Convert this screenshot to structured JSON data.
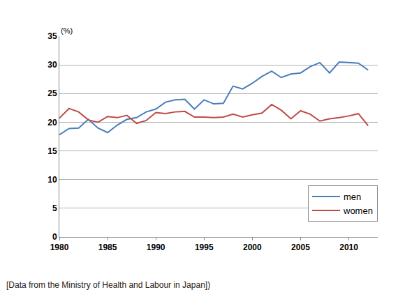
{
  "chart_data": {
    "type": "line",
    "y_label": "(%)",
    "caption": "[Data from the Ministry of Health and Labour in Japan])",
    "x": [
      1980,
      1981,
      1982,
      1983,
      1984,
      1985,
      1986,
      1987,
      1988,
      1989,
      1990,
      1991,
      1992,
      1993,
      1994,
      1995,
      1996,
      1997,
      1998,
      1999,
      2000,
      2001,
      2002,
      2003,
      2004,
      2005,
      2006,
      2007,
      2008,
      2009,
      2010,
      2011,
      2012
    ],
    "series": [
      {
        "name": "men",
        "color": "#4a7ebb",
        "values": [
          17.8,
          18.9,
          19.0,
          20.5,
          19.0,
          18.2,
          19.5,
          20.5,
          20.8,
          21.8,
          22.3,
          23.5,
          23.9,
          24.0,
          22.3,
          23.9,
          23.2,
          23.3,
          26.3,
          25.8,
          26.8,
          28.0,
          28.9,
          27.8,
          28.4,
          28.6,
          29.7,
          30.4,
          28.6,
          30.5,
          30.4,
          30.3,
          29.1
        ]
      },
      {
        "name": "women",
        "color": "#be4b48",
        "values": [
          20.7,
          22.4,
          21.8,
          20.4,
          20.0,
          21.0,
          20.8,
          21.2,
          19.8,
          20.3,
          21.7,
          21.5,
          21.8,
          21.9,
          20.9,
          20.9,
          20.8,
          20.9,
          21.4,
          20.9,
          21.3,
          21.6,
          23.1,
          22.1,
          20.6,
          22.0,
          21.4,
          20.2,
          20.6,
          20.8,
          21.1,
          21.5,
          19.4
        ]
      }
    ],
    "xlim": [
      1980,
      2013
    ],
    "xticks": [
      1980,
      1985,
      1990,
      1995,
      2000,
      2005,
      2010
    ],
    "ylim": [
      0,
      35
    ],
    "yticks": [
      0,
      5,
      10,
      15,
      20,
      25,
      30,
      35
    ],
    "grid": true,
    "legend": "lower right"
  }
}
